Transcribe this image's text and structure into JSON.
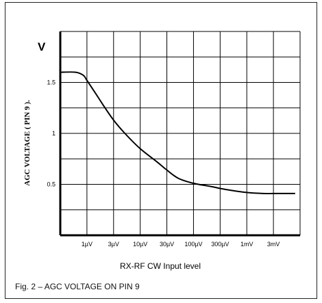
{
  "caption": "Fig. 2 – AGC VOLTAGE ON PIN 9",
  "chart_data": {
    "type": "line",
    "title": "",
    "xlabel": "RX-RF CW Input level",
    "ylabel": "AGC VOLTAGE ( PIN 9 ).",
    "y_unit": "V",
    "x_scale": "log",
    "x_ticks": [
      {
        "label": "1µV",
        "value": 1
      },
      {
        "label": "3µV",
        "value": 3
      },
      {
        "label": "10µV",
        "value": 10
      },
      {
        "label": "30µV",
        "value": 30
      },
      {
        "label": "100µV",
        "value": 100
      },
      {
        "label": "300µV",
        "value": 300
      },
      {
        "label": "1mV",
        "value": 1000
      },
      {
        "label": "3mV",
        "value": 3000
      }
    ],
    "y_ticks": [
      {
        "label": "1.5",
        "value": 1.5
      },
      {
        "label": "1",
        "value": 1.0
      },
      {
        "label": "0.5",
        "value": 0.5
      }
    ],
    "ylim": [
      0,
      2.0
    ],
    "grid": true,
    "series": [
      {
        "x_uV": [
          0.3,
          0.6,
          0.85,
          1,
          1.4,
          2,
          3,
          5,
          10,
          20,
          30,
          50,
          100,
          200,
          300,
          500,
          1000,
          2000,
          3000,
          5000,
          8000
        ],
        "y": [
          1.6,
          1.6,
          1.57,
          1.52,
          1.4,
          1.27,
          1.13,
          1.0,
          0.85,
          0.72,
          0.64,
          0.56,
          0.51,
          0.48,
          0.46,
          0.44,
          0.42,
          0.41,
          0.41,
          0.41,
          0.41
        ]
      }
    ]
  }
}
